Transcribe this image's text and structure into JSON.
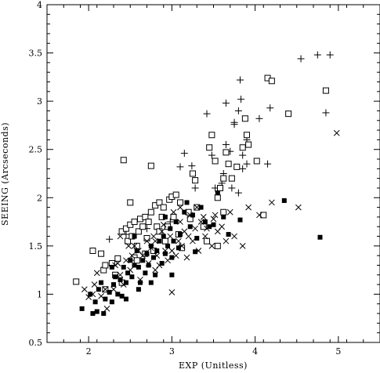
{
  "chart_data": {
    "type": "scatter",
    "title": "",
    "xlabel": "EXP  (Unitless)",
    "ylabel": "SEEING  (Arcseconds)",
    "xlim": [
      1.5,
      5.5
    ],
    "ylim": [
      0.5,
      4
    ],
    "xticks": [
      2,
      3,
      4,
      5
    ],
    "yticks": [
      0.5,
      1,
      1.5,
      2,
      2.5,
      3,
      3.5,
      4
    ],
    "ytick_labels": [
      "0.5",
      "1",
      "1.5",
      "2",
      "2.5",
      "3",
      "3.5",
      "4"
    ],
    "grid": false,
    "legend": "none",
    "series": [
      {
        "marker": "plus",
        "points": [
          [
            2.25,
            1.57
          ],
          [
            2.45,
            1.62
          ],
          [
            2.7,
            1.68
          ],
          [
            2.98,
            1.75
          ],
          [
            3.1,
            2.32
          ],
          [
            3.15,
            2.46
          ],
          [
            3.24,
            2.33
          ],
          [
            3.28,
            2.1
          ],
          [
            3.42,
            2.87
          ],
          [
            3.48,
            2.44
          ],
          [
            3.52,
            2.1
          ],
          [
            3.6,
            2.15
          ],
          [
            3.62,
            2.25
          ],
          [
            3.65,
            2.55
          ],
          [
            3.7,
            2.48
          ],
          [
            3.65,
            2.98
          ],
          [
            3.75,
            2.76
          ],
          [
            3.8,
            2.9
          ],
          [
            3.72,
            2.1
          ],
          [
            3.82,
            3.22
          ],
          [
            3.83,
            3.02
          ],
          [
            3.85,
            2.44
          ],
          [
            3.9,
            2.35
          ],
          [
            3.75,
            2.78
          ],
          [
            4.05,
            2.82
          ],
          [
            4.15,
            2.35
          ],
          [
            4.18,
            2.93
          ],
          [
            3.8,
            2.05
          ],
          [
            4.55,
            3.44
          ],
          [
            4.75,
            3.48
          ],
          [
            4.9,
            3.48
          ],
          [
            4.85,
            2.88
          ],
          [
            3.9,
            2.6
          ],
          [
            3.85,
            2.3
          ]
        ]
      },
      {
        "marker": "square",
        "points": [
          [
            1.85,
            1.13
          ],
          [
            2.05,
            1.45
          ],
          [
            2.15,
            1.42
          ],
          [
            2.18,
            1.25
          ],
          [
            2.2,
            1.3
          ],
          [
            2.28,
            1.32
          ],
          [
            2.35,
            1.37
          ],
          [
            2.4,
            1.65
          ],
          [
            2.45,
            1.68
          ],
          [
            2.47,
            1.55
          ],
          [
            2.5,
            1.72
          ],
          [
            2.52,
            1.6
          ],
          [
            2.5,
            1.95
          ],
          [
            2.55,
            1.75
          ],
          [
            2.58,
            1.5
          ],
          [
            2.6,
            1.65
          ],
          [
            2.62,
            1.78
          ],
          [
            2.65,
            1.7
          ],
          [
            2.68,
            1.8
          ],
          [
            2.7,
            1.58
          ],
          [
            2.72,
            1.75
          ],
          [
            2.75,
            1.85
          ],
          [
            2.78,
            1.45
          ],
          [
            2.8,
            1.92
          ],
          [
            2.82,
            1.7
          ],
          [
            2.85,
            1.95
          ],
          [
            2.85,
            1.65
          ],
          [
            2.88,
            1.8
          ],
          [
            2.9,
            1.9
          ],
          [
            2.92,
            1.55
          ],
          [
            2.95,
            1.7
          ],
          [
            2.97,
            1.98
          ],
          [
            3.0,
            2.01
          ],
          [
            3.02,
            1.8
          ],
          [
            3.05,
            2.03
          ],
          [
            3.08,
            1.62
          ],
          [
            3.1,
            1.95
          ],
          [
            3.2,
            1.85
          ],
          [
            3.22,
            1.78
          ],
          [
            3.25,
            2.25
          ],
          [
            3.28,
            2.18
          ],
          [
            3.3,
            1.9
          ],
          [
            3.38,
            1.7
          ],
          [
            3.42,
            1.55
          ],
          [
            3.45,
            2.52
          ],
          [
            3.48,
            2.65
          ],
          [
            3.52,
            2.38
          ],
          [
            3.55,
            2.0
          ],
          [
            3.58,
            2.1
          ],
          [
            3.62,
            2.2
          ],
          [
            3.62,
            1.85
          ],
          [
            3.65,
            2.47
          ],
          [
            3.68,
            2.35
          ],
          [
            3.72,
            2.2
          ],
          [
            3.78,
            2.32
          ],
          [
            3.85,
            2.52
          ],
          [
            3.88,
            2.82
          ],
          [
            3.9,
            2.65
          ],
          [
            3.92,
            2.55
          ],
          [
            4.02,
            2.38
          ],
          [
            4.1,
            1.82
          ],
          [
            4.15,
            3.24
          ],
          [
            4.2,
            3.21
          ],
          [
            4.4,
            2.87
          ],
          [
            4.85,
            3.11
          ],
          [
            2.42,
            2.39
          ],
          [
            2.75,
            2.33
          ],
          [
            2.2,
            1.05
          ],
          [
            2.32,
            1.2
          ],
          [
            2.4,
            1.12
          ],
          [
            2.55,
            1.38
          ],
          [
            2.68,
            1.42
          ],
          [
            2.58,
            1.35
          ],
          [
            3.12,
            1.48
          ],
          [
            3.55,
            1.5
          ]
        ]
      },
      {
        "marker": "cross",
        "points": [
          [
            1.95,
            1.05
          ],
          [
            2.0,
            0.97
          ],
          [
            2.05,
            1.0
          ],
          [
            2.07,
            1.1
          ],
          [
            2.1,
            1.22
          ],
          [
            2.15,
            0.98
          ],
          [
            2.2,
            1.05
          ],
          [
            2.22,
            0.85
          ],
          [
            2.3,
            1.05
          ],
          [
            2.32,
            1.3
          ],
          [
            2.35,
            1.32
          ],
          [
            2.38,
            1.2
          ],
          [
            2.42,
            1.1
          ],
          [
            2.45,
            1.35
          ],
          [
            2.48,
            1.5
          ],
          [
            2.5,
            1.25
          ],
          [
            2.52,
            1.4
          ],
          [
            2.55,
            1.5
          ],
          [
            2.6,
            1.45
          ],
          [
            2.65,
            1.4
          ],
          [
            2.7,
            1.55
          ],
          [
            2.72,
            1.32
          ],
          [
            2.75,
            1.48
          ],
          [
            2.78,
            1.6
          ],
          [
            2.8,
            1.55
          ],
          [
            2.82,
            1.4
          ],
          [
            2.85,
            1.3
          ],
          [
            2.88,
            1.65
          ],
          [
            2.9,
            1.72
          ],
          [
            2.92,
            1.45
          ],
          [
            2.95,
            1.35
          ],
          [
            2.98,
            1.6
          ],
          [
            3.0,
            1.02
          ],
          [
            3.0,
            1.45
          ],
          [
            3.02,
            1.85
          ],
          [
            3.05,
            1.4
          ],
          [
            3.08,
            1.55
          ],
          [
            3.1,
            1.75
          ],
          [
            3.12,
            1.5
          ],
          [
            3.15,
            1.65
          ],
          [
            3.18,
            1.38
          ],
          [
            3.2,
            1.6
          ],
          [
            3.22,
            1.82
          ],
          [
            3.25,
            1.55
          ],
          [
            3.28,
            1.68
          ],
          [
            3.3,
            1.9
          ],
          [
            3.32,
            1.45
          ],
          [
            3.35,
            1.75
          ],
          [
            3.38,
            1.8
          ],
          [
            3.4,
            1.6
          ],
          [
            3.42,
            1.68
          ],
          [
            3.48,
            1.5
          ],
          [
            3.52,
            1.82
          ],
          [
            3.55,
            1.65
          ],
          [
            3.6,
            1.7
          ],
          [
            3.65,
            1.55
          ],
          [
            3.7,
            1.85
          ],
          [
            3.75,
            1.6
          ],
          [
            3.85,
            1.5
          ],
          [
            3.92,
            1.9
          ],
          [
            4.05,
            1.82
          ],
          [
            4.2,
            1.95
          ],
          [
            4.52,
            1.9
          ],
          [
            4.98,
            2.67
          ],
          [
            2.38,
            1.6
          ],
          [
            2.62,
            1.15
          ],
          [
            2.8,
            1.25
          ],
          [
            3.5,
            1.78
          ],
          [
            3.1,
            1.9
          ]
        ]
      },
      {
        "marker": "filled-square",
        "points": [
          [
            1.92,
            0.85
          ],
          [
            2.02,
            1.0
          ],
          [
            2.05,
            0.8
          ],
          [
            2.08,
            0.92
          ],
          [
            2.1,
            0.82
          ],
          [
            2.12,
            1.05
          ],
          [
            2.15,
            1.12
          ],
          [
            2.2,
            0.95
          ],
          [
            2.25,
            1.02
          ],
          [
            2.28,
            0.92
          ],
          [
            2.3,
            1.1
          ],
          [
            2.32,
            1.18
          ],
          [
            2.35,
            1.0
          ],
          [
            2.38,
            1.15
          ],
          [
            2.4,
            0.98
          ],
          [
            2.42,
            1.28
          ],
          [
            2.45,
            1.12
          ],
          [
            2.47,
            1.22
          ],
          [
            2.5,
            1.35
          ],
          [
            2.52,
            1.18
          ],
          [
            2.55,
            1.3
          ],
          [
            2.58,
            1.45
          ],
          [
            2.6,
            1.28
          ],
          [
            2.62,
            1.12
          ],
          [
            2.65,
            1.35
          ],
          [
            2.68,
            1.22
          ],
          [
            2.7,
            1.42
          ],
          [
            2.72,
            1.3
          ],
          [
            2.75,
            1.5
          ],
          [
            2.78,
            1.38
          ],
          [
            2.8,
            1.2
          ],
          [
            2.82,
            1.45
          ],
          [
            2.85,
            1.55
          ],
          [
            2.88,
            1.32
          ],
          [
            2.9,
            1.6
          ],
          [
            2.92,
            1.42
          ],
          [
            2.95,
            1.5
          ],
          [
            2.98,
            1.68
          ],
          [
            3.0,
            1.38
          ],
          [
            3.02,
            1.55
          ],
          [
            3.05,
            1.75
          ],
          [
            3.08,
            1.48
          ],
          [
            3.1,
            1.62
          ],
          [
            3.15,
            1.85
          ],
          [
            3.18,
            1.95
          ],
          [
            3.22,
            1.7
          ],
          [
            3.25,
            1.82
          ],
          [
            3.3,
            1.58
          ],
          [
            3.35,
            1.9
          ],
          [
            3.4,
            1.75
          ],
          [
            3.45,
            1.7
          ],
          [
            3.5,
            1.72
          ],
          [
            3.55,
            2.05
          ],
          [
            3.62,
            1.8
          ],
          [
            3.68,
            1.62
          ],
          [
            3.82,
            1.77
          ],
          [
            4.35,
            1.97
          ],
          [
            4.78,
            1.59
          ],
          [
            2.18,
            0.8
          ],
          [
            2.45,
            0.95
          ],
          [
            2.6,
            1.05
          ],
          [
            2.75,
            1.12
          ],
          [
            3.0,
            1.2
          ],
          [
            3.28,
            1.44
          ],
          [
            2.92,
            1.8
          ],
          [
            2.55,
            1.6
          ],
          [
            2.28,
            1.28
          ]
        ]
      }
    ]
  }
}
